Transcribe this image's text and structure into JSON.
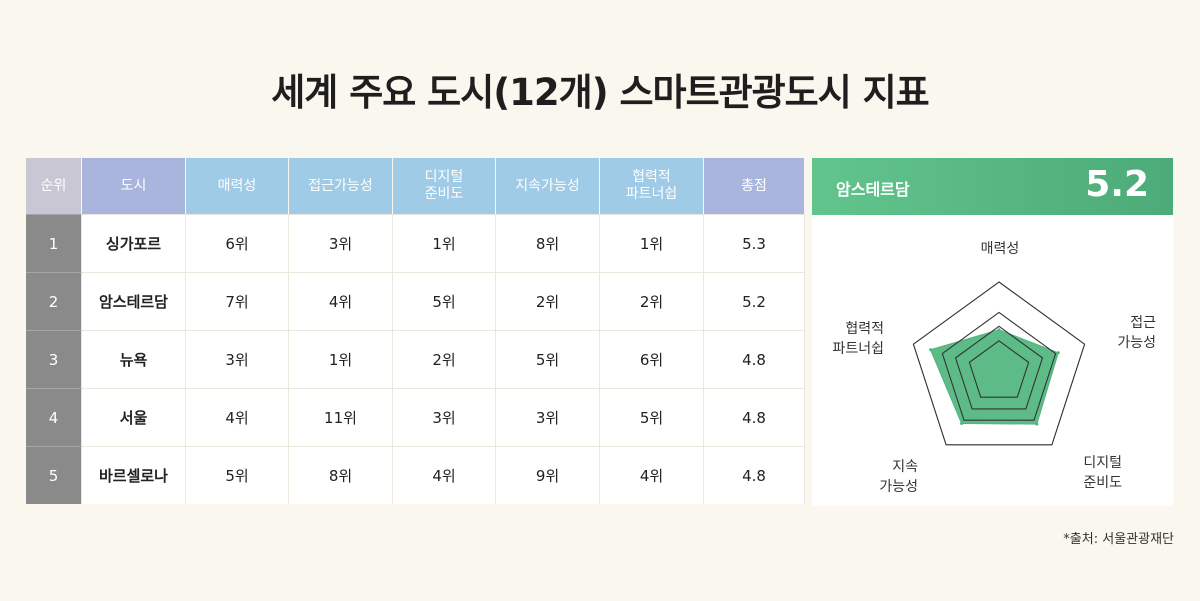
{
  "title": "세계 주요 도시(12개) 스마트관광도시 지표",
  "table": {
    "headers": [
      "순위",
      "도시",
      "매력성",
      "접근가능성",
      "디지털\n준비도",
      "지속가능성",
      "협력적\n파트너쉽",
      "총점"
    ],
    "rows": [
      {
        "rank": "1",
        "city": "싱가포르",
        "attractiveness": "6위",
        "accessibility": "3위",
        "digital": "1위",
        "sustainability": "8위",
        "partnership": "1위",
        "total": "5.3"
      },
      {
        "rank": "2",
        "city": "암스테르담",
        "attractiveness": "7위",
        "accessibility": "4위",
        "digital": "5위",
        "sustainability": "2위",
        "partnership": "2위",
        "total": "5.2"
      },
      {
        "rank": "3",
        "city": "뉴욕",
        "attractiveness": "3위",
        "accessibility": "1위",
        "digital": "2위",
        "sustainability": "5위",
        "partnership": "6위",
        "total": "4.8"
      },
      {
        "rank": "4",
        "city": "서울",
        "attractiveness": "4위",
        "accessibility": "11위",
        "digital": "3위",
        "sustainability": "3위",
        "partnership": "5위",
        "total": "4.8"
      },
      {
        "rank": "5",
        "city": "바르셀로나",
        "attractiveness": "5위",
        "accessibility": "8위",
        "digital": "4위",
        "sustainability": "9위",
        "partnership": "4위",
        "total": "4.8"
      }
    ]
  },
  "radar": {
    "city": "암스테르담",
    "score": "5.2",
    "axis_labels": [
      {
        "lines": [
          "매력성"
        ]
      },
      {
        "lines": [
          "접근",
          "가능성"
        ]
      },
      {
        "lines": [
          "디지털",
          "준비도"
        ]
      },
      {
        "lines": [
          "지속",
          "가능성"
        ]
      },
      {
        "lines": [
          "협력적",
          "파트너쉽"
        ]
      }
    ],
    "fill_color": "#4fb57e",
    "grid_color": "#333333"
  },
  "chart_data": {
    "type": "radar",
    "title": "",
    "series": [
      {
        "name": "암스테르담",
        "values": [
          0.61,
          0.9,
          0.93,
          0.92,
          1.04
        ]
      }
    ],
    "categories": [
      "매력성",
      "접근가능성",
      "디지털준비도",
      "지속가능성",
      "협력적파트너쉽"
    ],
    "ylim": [
      0,
      1.3
    ],
    "grid_levels": [
      0.45,
      0.66,
      0.86,
      1.3
    ]
  },
  "source": "*출처: 서울관광재단"
}
